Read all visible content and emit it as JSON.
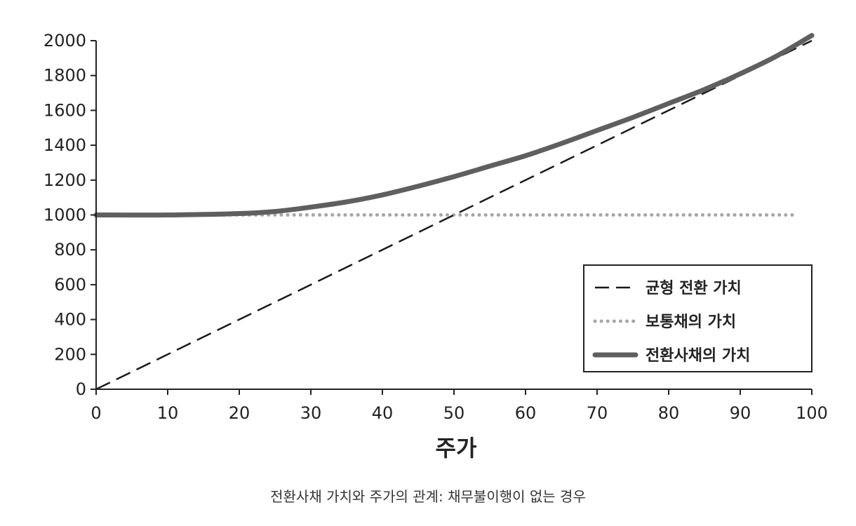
{
  "chart_data": {
    "type": "line",
    "xlabel": "주가",
    "ylabel": "",
    "xlim": [
      0,
      100
    ],
    "ylim": [
      0,
      2000
    ],
    "xticks": [
      0,
      10,
      20,
      30,
      40,
      50,
      60,
      70,
      80,
      90,
      100
    ],
    "yticks": [
      0,
      200,
      400,
      600,
      800,
      1000,
      1200,
      1400,
      1600,
      1800,
      2000
    ],
    "grid": false,
    "legend_position": "bottom-right",
    "series": [
      {
        "name": "균형 전환 가치",
        "style": "dashed",
        "color": "#1a1a1a",
        "x": [
          0,
          100
        ],
        "y": [
          0,
          2000
        ]
      },
      {
        "name": "보통채의 가치",
        "style": "dotted",
        "color": "#a6a6a6",
        "x": [
          0,
          100
        ],
        "y": [
          1000,
          1000
        ]
      },
      {
        "name": "전환사채의 가치",
        "style": "solid",
        "color": "#5f5f5f",
        "x": [
          0,
          10,
          20,
          25,
          30,
          35,
          40,
          45,
          50,
          55,
          60,
          65,
          70,
          75,
          80,
          85,
          90,
          95,
          100
        ],
        "y": [
          1000,
          1000,
          1008,
          1020,
          1045,
          1075,
          1115,
          1165,
          1220,
          1280,
          1340,
          1410,
          1485,
          1560,
          1640,
          1720,
          1810,
          1910,
          2030
        ]
      }
    ]
  },
  "caption": "전환사채 가치와 주가의 관계: 채무불이행이 없는 경우"
}
